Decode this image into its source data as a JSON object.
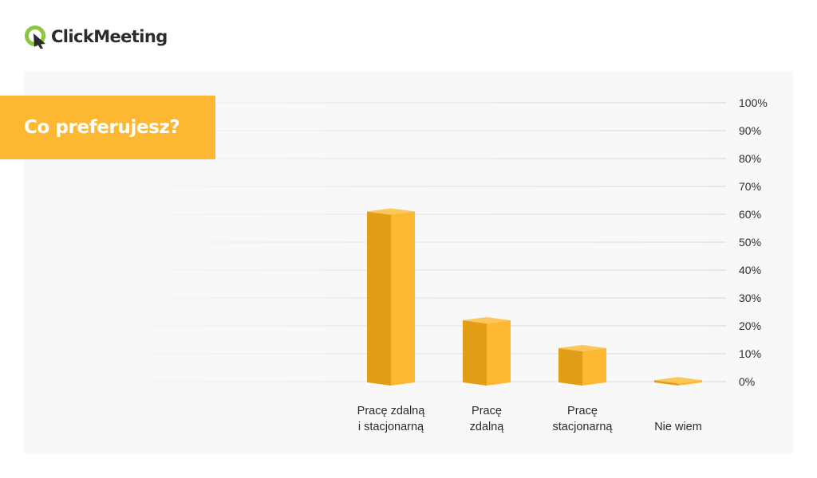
{
  "brand": {
    "name": "ClickMeeting",
    "logo_icon": "clickmeeting-logo-icon",
    "logo_green": "#8cc63f",
    "logo_dark": "#2b2b2b"
  },
  "colors": {
    "accent": "#fcb833",
    "bar_light": "#fcb833",
    "bar_dark": "#e29e16",
    "bar_top": "#fdc659"
  },
  "chart_data": {
    "type": "bar",
    "title": "Co preferujesz?",
    "categories": [
      [
        "Pracę zdalną",
        "i stacjonarną"
      ],
      [
        "Pracę",
        "zdalną"
      ],
      [
        "Pracę",
        "stacjonarną"
      ],
      [
        "Nie wiem"
      ]
    ],
    "values": [
      61,
      22,
      12,
      0.5
    ],
    "unit": "%",
    "ylim": [
      0,
      100
    ],
    "yticks": [
      "100%",
      "90%",
      "80%",
      "70%",
      "60%",
      "50%",
      "40%",
      "30%",
      "20%",
      "10%",
      "0%"
    ],
    "ytick_values": [
      100,
      90,
      80,
      70,
      60,
      50,
      40,
      30,
      20,
      10,
      0
    ],
    "axis_side": "right",
    "grid": true,
    "bar_style": "3d-box"
  }
}
